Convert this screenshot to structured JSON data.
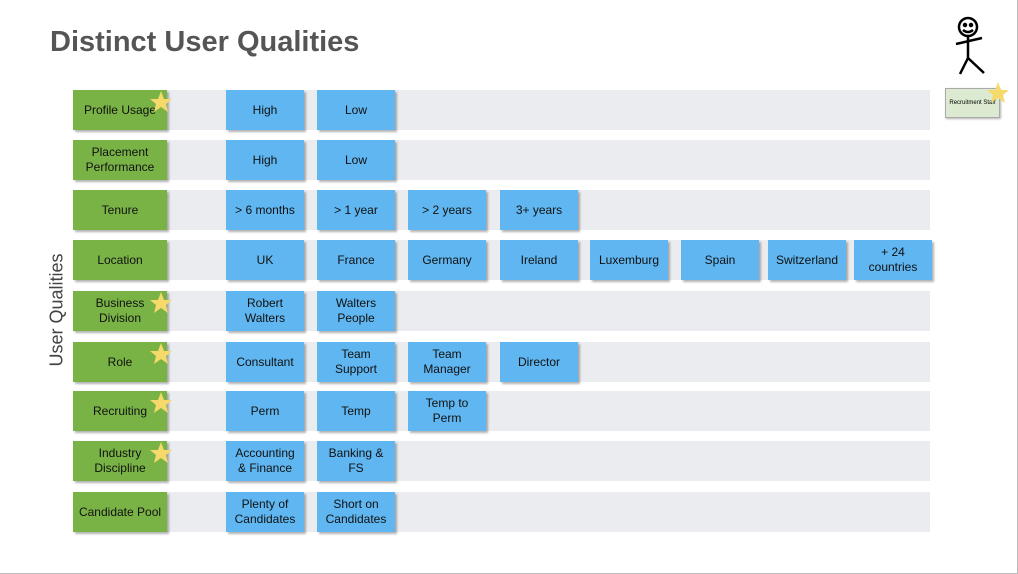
{
  "title": "Distinct User Qualities",
  "side_label": "User Qualities",
  "staff_label": "Recruitment Staff",
  "rows": [
    {
      "label": "Profile Usage",
      "items": [
        "High",
        "Low"
      ]
    },
    {
      "label": "Placement Performance",
      "items": [
        "High",
        "Low"
      ]
    },
    {
      "label": "Tenure",
      "items": [
        "> 6 months",
        "> 1 year",
        "> 2 years",
        "3+ years"
      ]
    },
    {
      "label": "Location",
      "items": [
        "UK",
        "France",
        "Germany",
        "Ireland",
        "Luxemburg",
        "Spain",
        "Switzerland",
        "+ 24 countries"
      ]
    },
    {
      "label": "Business Division",
      "items": [
        "Robert Walters",
        "Walters People"
      ]
    },
    {
      "label": "Role",
      "items": [
        "Consultant",
        "Team Support",
        "Team Manager",
        "Director"
      ]
    },
    {
      "label": "Recruiting",
      "items": [
        "Perm",
        "Temp",
        "Temp to Perm"
      ]
    },
    {
      "label": "Industry Discipline",
      "items": [
        "Accounting & Finance",
        "Banking & FS"
      ]
    },
    {
      "label": "Candidate Pool",
      "items": [
        "Plenty of Candidates",
        "Short on Candidates"
      ]
    }
  ]
}
